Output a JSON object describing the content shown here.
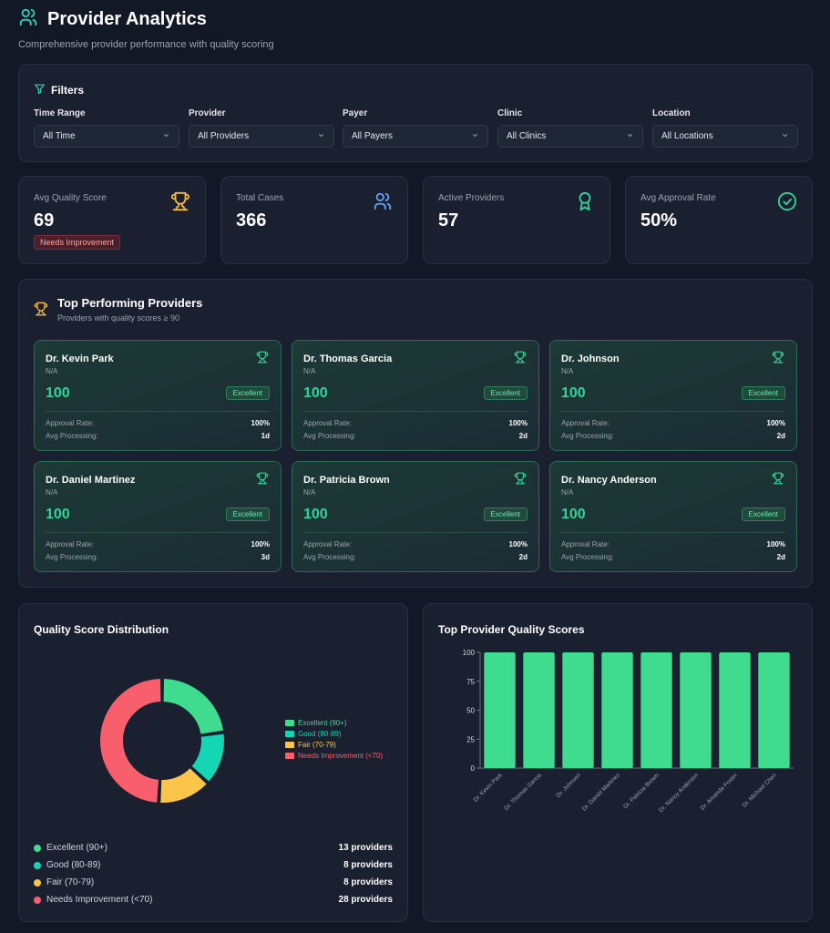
{
  "header": {
    "title": "Provider Analytics",
    "subtitle": "Comprehensive provider performance with quality scoring"
  },
  "filters": {
    "title": "Filters",
    "groups": [
      {
        "label": "Time Range",
        "value": "All Time"
      },
      {
        "label": "Provider",
        "value": "All Providers"
      },
      {
        "label": "Payer",
        "value": "All Payers"
      },
      {
        "label": "Clinic",
        "value": "All Clinics"
      },
      {
        "label": "Location",
        "value": "All Locations"
      }
    ]
  },
  "stats": [
    {
      "label": "Avg Quality Score",
      "value": "69",
      "badge": "Needs Improvement",
      "icon": "trophy-icon"
    },
    {
      "label": "Total Cases",
      "value": "366",
      "icon": "users-icon"
    },
    {
      "label": "Active Providers",
      "value": "57",
      "icon": "award-icon"
    },
    {
      "label": "Avg Approval Rate",
      "value": "50%",
      "icon": "check-circle-icon"
    }
  ],
  "top_providers": {
    "title": "Top Performing Providers",
    "subtitle": "Providers with quality scores ≥ 90",
    "approval_label": "Approval Rate:",
    "processing_label": "Avg Processing:",
    "items": [
      {
        "name": "Dr. Kevin Park",
        "location": "N/A",
        "score": "100",
        "badge": "Excellent",
        "approval": "100%",
        "processing": "1d"
      },
      {
        "name": "Dr. Thomas Garcia",
        "location": "N/A",
        "score": "100",
        "badge": "Excellent",
        "approval": "100%",
        "processing": "2d"
      },
      {
        "name": "Dr. Johnson",
        "location": "N/A",
        "score": "100",
        "badge": "Excellent",
        "approval": "100%",
        "processing": "2d"
      },
      {
        "name": "Dr. Daniel Martinez",
        "location": "N/A",
        "score": "100",
        "badge": "Excellent",
        "approval": "100%",
        "processing": "3d"
      },
      {
        "name": "Dr. Patricia Brown",
        "location": "N/A",
        "score": "100",
        "badge": "Excellent",
        "approval": "100%",
        "processing": "2d"
      },
      {
        "name": "Dr. Nancy Anderson",
        "location": "N/A",
        "score": "100",
        "badge": "Excellent",
        "approval": "100%",
        "processing": "2d"
      }
    ]
  },
  "distribution": {
    "title": "Quality Score Distribution",
    "summary": [
      {
        "label": "Excellent (90+)",
        "count": "13 providers",
        "color": "#3fdc8f"
      },
      {
        "label": "Good (80-89)",
        "count": "8 providers",
        "color": "#14d5b4"
      },
      {
        "label": "Fair (70-79)",
        "count": "8 providers",
        "color": "#fbc54a"
      },
      {
        "label": "Needs Improvement (<70)",
        "count": "28 providers",
        "color": "#f75f6c"
      }
    ]
  },
  "bar_panel": {
    "title": "Top Provider Quality Scores"
  },
  "colors": {
    "accent": "#2dd4bf",
    "excellent": "#3fdc8f",
    "good": "#14d5b4",
    "fair": "#fbc54a",
    "poor": "#f75f6c",
    "gold": "#f5b942"
  },
  "chart_data": [
    {
      "type": "pie",
      "title": "Quality Score Distribution",
      "donut": true,
      "categories": [
        "Excellent (90+)",
        "Good (80-89)",
        "Fair (70-79)",
        "Needs Improvement (<70)"
      ],
      "values": [
        13,
        8,
        8,
        28
      ],
      "colors": [
        "#3fdc8f",
        "#14d5b4",
        "#fbc54a",
        "#f75f6c"
      ],
      "legend": "right"
    },
    {
      "type": "bar",
      "title": "Top Provider Quality Scores",
      "categories": [
        "Dr. Kevin Park",
        "Dr. Thomas Garcia",
        "Dr. Johnson",
        "Dr. Daniel Martinez",
        "Dr. Patricia Brown",
        "Dr. Nancy Anderson",
        "Dr. Amanda Foster",
        "Dr. Michael Chen"
      ],
      "values": [
        100,
        100,
        100,
        100,
        100,
        100,
        100,
        100
      ],
      "ylim": [
        0,
        100
      ],
      "yticks": [
        0,
        25,
        50,
        75,
        100
      ],
      "color": "#3fdc8f"
    }
  ]
}
